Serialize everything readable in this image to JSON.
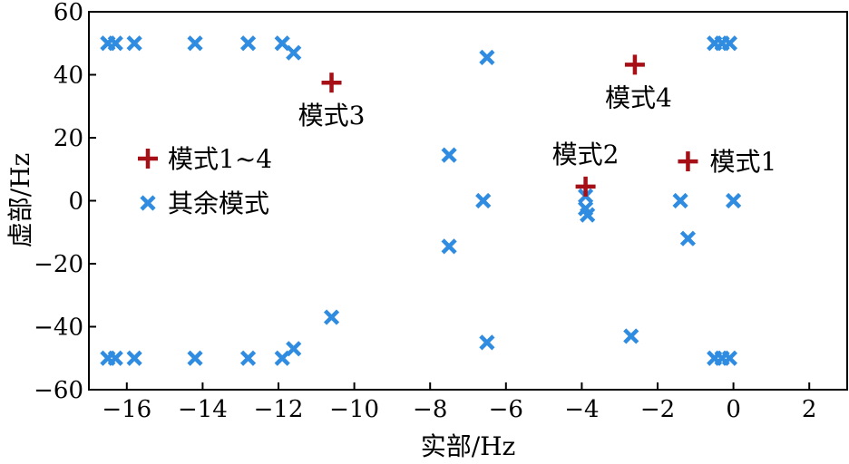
{
  "chart_data": {
    "type": "scatter",
    "xlabel": "实部/Hz",
    "ylabel": "虚部/Hz",
    "xlim": [
      -17,
      3
    ],
    "ylim": [
      -60,
      60
    ],
    "xticks": [
      -16,
      -14,
      -12,
      -10,
      -8,
      -6,
      -4,
      -2,
      0,
      2
    ],
    "yticks": [
      -60,
      -40,
      -20,
      0,
      20,
      40,
      60
    ],
    "grid": false,
    "legend_position": "left",
    "series": [
      {
        "name": "模式1~4",
        "marker": "plus",
        "color": "#a50f15",
        "points": [
          {
            "x": -1.2,
            "y": 12.5
          },
          {
            "x": -3.9,
            "y": 4.5
          },
          {
            "x": -10.6,
            "y": 37.5
          },
          {
            "x": -2.6,
            "y": 43.2
          }
        ]
      },
      {
        "name": "其余模式",
        "marker": "x",
        "color": "#2f8ce0",
        "points": [
          {
            "x": -16.5,
            "y": 50
          },
          {
            "x": -16.3,
            "y": 50
          },
          {
            "x": -15.8,
            "y": 50
          },
          {
            "x": -14.2,
            "y": 50
          },
          {
            "x": -12.8,
            "y": 50
          },
          {
            "x": -11.9,
            "y": 50
          },
          {
            "x": -11.6,
            "y": 47
          },
          {
            "x": -16.5,
            "y": -50
          },
          {
            "x": -16.3,
            "y": -50
          },
          {
            "x": -15.8,
            "y": -50
          },
          {
            "x": -14.2,
            "y": -50
          },
          {
            "x": -12.8,
            "y": -50
          },
          {
            "x": -11.9,
            "y": -50
          },
          {
            "x": -11.6,
            "y": -47
          },
          {
            "x": -10.6,
            "y": -37
          },
          {
            "x": -7.5,
            "y": 14.5
          },
          {
            "x": -7.5,
            "y": -14.5
          },
          {
            "x": -6.5,
            "y": 45.5
          },
          {
            "x": -6.5,
            "y": -45
          },
          {
            "x": -6.6,
            "y": 0
          },
          {
            "x": -3.9,
            "y": 1.5
          },
          {
            "x": -3.9,
            "y": -2.5
          },
          {
            "x": -3.85,
            "y": -4.5
          },
          {
            "x": -2.7,
            "y": -43
          },
          {
            "x": -1.4,
            "y": 0
          },
          {
            "x": -1.2,
            "y": -12
          },
          {
            "x": -0.5,
            "y": 50
          },
          {
            "x": -0.3,
            "y": 50
          },
          {
            "x": -0.1,
            "y": 50
          },
          {
            "x": -0.5,
            "y": -50
          },
          {
            "x": -0.3,
            "y": -50
          },
          {
            "x": -0.1,
            "y": -50
          },
          {
            "x": 0.0,
            "y": 0
          }
        ]
      }
    ],
    "annotations": [
      {
        "text": "模式1",
        "x": -1.2,
        "y": 12.5
      },
      {
        "text": "模式2",
        "x": -3.9,
        "y": 4.5
      },
      {
        "text": "模式3",
        "x": -10.6,
        "y": 37.5
      },
      {
        "text": "模式4",
        "x": -2.6,
        "y": 43.2
      }
    ]
  }
}
